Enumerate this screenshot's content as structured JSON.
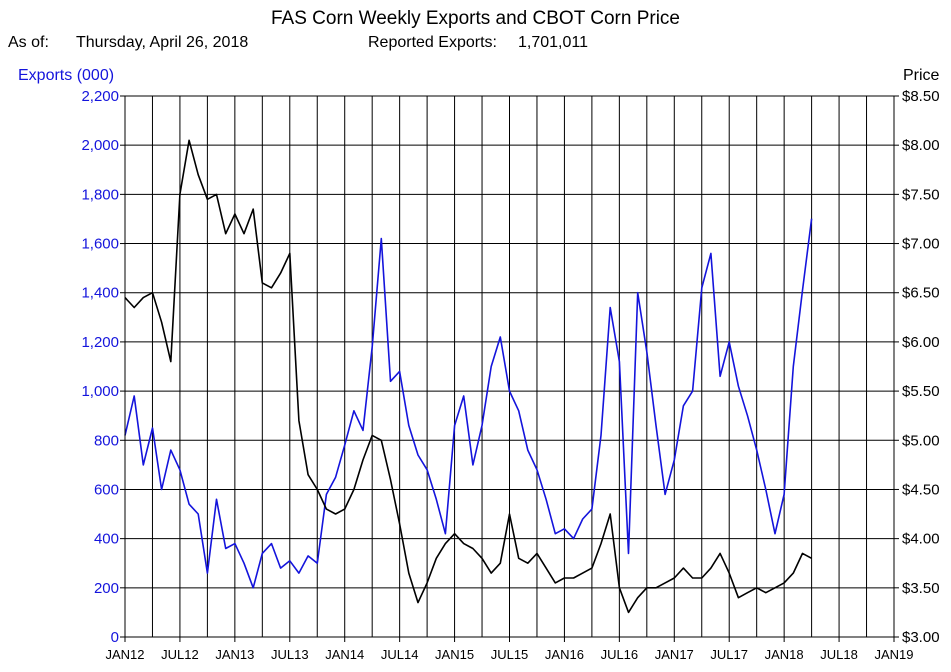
{
  "header": {
    "title": "FAS Corn Weekly Exports and CBOT Corn Price",
    "as_of_label": "As of:",
    "as_of_date": "Thursday, April 26, 2018",
    "reported_label": "Reported Exports:",
    "reported_value": "1,701,011"
  },
  "chart_data": {
    "type": "line",
    "title": "FAS Corn Weekly Exports and CBOT Corn Price",
    "y_left": {
      "label": "Exports (000)",
      "range": [
        0,
        2200
      ],
      "ticks": [
        "0",
        "200",
        "400",
        "600",
        "800",
        "1,000",
        "1,200",
        "1,400",
        "1,600",
        "1,800",
        "2,000",
        "2,200"
      ]
    },
    "y_right": {
      "label": "Price",
      "range": [
        3.0,
        8.5
      ],
      "ticks": [
        "$3.00",
        "$3.50",
        "$4.00",
        "$4.50",
        "$5.00",
        "$5.50",
        "$6.00",
        "$6.50",
        "$7.00",
        "$7.50",
        "$8.00",
        "$8.50"
      ]
    },
    "x_ticks": [
      "JAN12",
      "JUL12",
      "JAN13",
      "JUL13",
      "JAN14",
      "JUL14",
      "JAN15",
      "JUL15",
      "JAN16",
      "JUL16",
      "JAN17",
      "JUL17",
      "JAN18",
      "JUL18",
      "JAN19"
    ],
    "x_range": [
      "2012-01",
      "2019-01"
    ],
    "grid": true,
    "colors": {
      "exports": "#1414dc",
      "price": "#000000",
      "grid": "#000000"
    },
    "series": [
      {
        "axis": "left",
        "color": "#1414dc",
        "x": [
          "2012-01",
          "2012-02",
          "2012-03",
          "2012-04",
          "2012-05",
          "2012-06",
          "2012-07",
          "2012-08",
          "2012-09",
          "2012-10",
          "2012-11",
          "2012-12",
          "2013-01",
          "2013-02",
          "2013-03",
          "2013-04",
          "2013-05",
          "2013-06",
          "2013-07",
          "2013-08",
          "2013-09",
          "2013-10",
          "2013-11",
          "2013-12",
          "2014-01",
          "2014-02",
          "2014-03",
          "2014-04",
          "2014-05",
          "2014-06",
          "2014-07",
          "2014-08",
          "2014-09",
          "2014-10",
          "2014-11",
          "2014-12",
          "2015-01",
          "2015-02",
          "2015-03",
          "2015-04",
          "2015-05",
          "2015-06",
          "2015-07",
          "2015-08",
          "2015-09",
          "2015-10",
          "2015-11",
          "2015-12",
          "2016-01",
          "2016-02",
          "2016-03",
          "2016-04",
          "2016-05",
          "2016-06",
          "2016-07",
          "2016-08",
          "2016-09",
          "2016-10",
          "2016-11",
          "2016-12",
          "2017-01",
          "2017-02",
          "2017-03",
          "2017-04",
          "2017-05",
          "2017-06",
          "2017-07",
          "2017-08",
          "2017-09",
          "2017-10",
          "2017-11",
          "2017-12",
          "2018-01",
          "2018-02",
          "2018-03",
          "2018-04"
        ],
        "values": [
          820,
          980,
          700,
          850,
          600,
          760,
          680,
          540,
          500,
          260,
          560,
          360,
          380,
          300,
          200,
          340,
          380,
          280,
          310,
          260,
          330,
          300,
          580,
          650,
          780,
          920,
          840,
          1180,
          1620,
          1040,
          1080,
          860,
          740,
          680,
          560,
          420,
          860,
          980,
          700,
          860,
          1100,
          1220,
          1000,
          920,
          760,
          680,
          560,
          420,
          440,
          400,
          480,
          520,
          820,
          1340,
          1120,
          340,
          1400,
          1160,
          860,
          580,
          720,
          940,
          1000,
          1420,
          1560,
          1060,
          1200,
          1020,
          900,
          760,
          600,
          420,
          580,
          1100,
          1410,
          1701
        ]
      },
      {
        "axis": "right",
        "color": "#000000",
        "x": [
          "2012-01",
          "2012-02",
          "2012-03",
          "2012-04",
          "2012-05",
          "2012-06",
          "2012-07",
          "2012-08",
          "2012-09",
          "2012-10",
          "2012-11",
          "2012-12",
          "2013-01",
          "2013-02",
          "2013-03",
          "2013-04",
          "2013-05",
          "2013-06",
          "2013-07",
          "2013-08",
          "2013-09",
          "2013-10",
          "2013-11",
          "2013-12",
          "2014-01",
          "2014-02",
          "2014-03",
          "2014-04",
          "2014-05",
          "2014-06",
          "2014-07",
          "2014-08",
          "2014-09",
          "2014-10",
          "2014-11",
          "2014-12",
          "2015-01",
          "2015-02",
          "2015-03",
          "2015-04",
          "2015-05",
          "2015-06",
          "2015-07",
          "2015-08",
          "2015-09",
          "2015-10",
          "2015-11",
          "2015-12",
          "2016-01",
          "2016-02",
          "2016-03",
          "2016-04",
          "2016-05",
          "2016-06",
          "2016-07",
          "2016-08",
          "2016-09",
          "2016-10",
          "2016-11",
          "2016-12",
          "2017-01",
          "2017-02",
          "2017-03",
          "2017-04",
          "2017-05",
          "2017-06",
          "2017-07",
          "2017-08",
          "2017-09",
          "2017-10",
          "2017-11",
          "2017-12",
          "2018-01",
          "2018-02",
          "2018-03",
          "2018-04"
        ],
        "values": [
          6.45,
          6.35,
          6.45,
          6.5,
          6.2,
          5.8,
          7.5,
          8.05,
          7.7,
          7.45,
          7.5,
          7.1,
          7.3,
          7.1,
          7.35,
          6.6,
          6.55,
          6.7,
          6.9,
          5.2,
          4.65,
          4.5,
          4.3,
          4.25,
          4.3,
          4.5,
          4.8,
          5.05,
          5.0,
          4.6,
          4.15,
          3.65,
          3.35,
          3.55,
          3.8,
          3.95,
          4.05,
          3.95,
          3.9,
          3.8,
          3.65,
          3.75,
          4.25,
          3.8,
          3.75,
          3.85,
          3.7,
          3.55,
          3.6,
          3.6,
          3.65,
          3.7,
          3.95,
          4.25,
          3.5,
          3.25,
          3.4,
          3.5,
          3.5,
          3.55,
          3.6,
          3.7,
          3.6,
          3.6,
          3.7,
          3.85,
          3.65,
          3.4,
          3.45,
          3.5,
          3.45,
          3.5,
          3.55,
          3.65,
          3.85,
          3.8
        ]
      }
    ]
  }
}
